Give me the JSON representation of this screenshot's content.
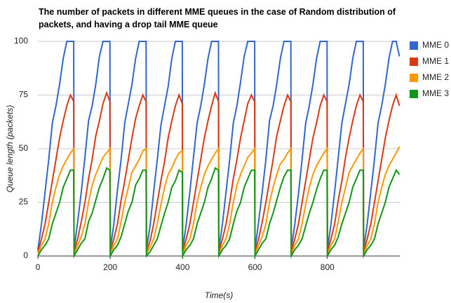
{
  "chart_data": {
    "type": "line",
    "title": "The number of packets in different MME queues in the case of Random distribution of packets, and having a drop tail MME queue",
    "x_label": "Time(s)",
    "y_label": "Queue length (packets)",
    "xlim": [
      0,
      1000
    ],
    "xticks": [
      0,
      200,
      400,
      600,
      800
    ],
    "ylim": [
      0,
      100
    ],
    "yticks": [
      0,
      25,
      50,
      75,
      100
    ],
    "grid": true,
    "legend": "right",
    "x": [
      0,
      10,
      20,
      30,
      40,
      50,
      60,
      70,
      80,
      90,
      99,
      100,
      110,
      120,
      130,
      140,
      150,
      160,
      170,
      180,
      190,
      199,
      200,
      210,
      220,
      230,
      240,
      250,
      260,
      270,
      280,
      290,
      299,
      300,
      310,
      320,
      330,
      340,
      350,
      360,
      370,
      380,
      390,
      399,
      400,
      410,
      420,
      430,
      440,
      450,
      460,
      470,
      480,
      490,
      499,
      500,
      510,
      520,
      530,
      540,
      550,
      560,
      570,
      580,
      590,
      599,
      600,
      610,
      620,
      630,
      640,
      650,
      660,
      670,
      680,
      690,
      699,
      700,
      710,
      720,
      730,
      740,
      750,
      760,
      770,
      780,
      790,
      799,
      800,
      810,
      820,
      830,
      840,
      850,
      860,
      870,
      880,
      890,
      899,
      900,
      910,
      920,
      930,
      940,
      950,
      960,
      970,
      980,
      990,
      999
    ],
    "series": [
      {
        "name": "MME 0",
        "color": "#3366cc",
        "values": [
          3,
          15,
          30,
          45,
          62,
          70,
          80,
          92,
          100,
          100,
          100,
          3,
          16,
          30,
          46,
          63,
          70,
          80,
          93,
          100,
          100,
          100,
          3,
          15,
          31,
          45,
          62,
          71,
          80,
          92,
          100,
          100,
          100,
          3,
          14,
          30,
          45,
          61,
          70,
          79,
          92,
          100,
          100,
          100,
          3,
          15,
          30,
          46,
          62,
          70,
          80,
          92,
          100,
          100,
          100,
          3,
          15,
          30,
          45,
          62,
          70,
          81,
          93,
          100,
          100,
          100,
          3,
          16,
          30,
          45,
          63,
          70,
          80,
          92,
          100,
          100,
          100,
          3,
          15,
          29,
          45,
          62,
          70,
          80,
          92,
          100,
          100,
          100,
          3,
          15,
          30,
          46,
          62,
          71,
          80,
          92,
          100,
          100,
          100,
          3,
          15,
          30,
          45,
          62,
          70,
          80,
          92,
          100,
          100,
          93
        ]
      },
      {
        "name": "MME 1",
        "color": "#dc3912",
        "values": [
          2,
          8,
          15,
          25,
          35,
          45,
          55,
          63,
          70,
          75,
          72,
          2,
          8,
          16,
          25,
          36,
          45,
          56,
          63,
          71,
          76,
          72,
          2,
          8,
          15,
          26,
          35,
          45,
          55,
          64,
          70,
          75,
          72,
          2,
          7,
          15,
          25,
          35,
          44,
          55,
          63,
          70,
          75,
          71,
          2,
          8,
          15,
          25,
          35,
          45,
          55,
          63,
          70,
          76,
          72,
          2,
          8,
          15,
          25,
          36,
          45,
          55,
          63,
          71,
          75,
          72,
          2,
          8,
          16,
          25,
          35,
          45,
          56,
          63,
          70,
          75,
          72,
          2,
          8,
          15,
          25,
          35,
          45,
          55,
          62,
          70,
          75,
          72,
          2,
          8,
          15,
          26,
          35,
          46,
          55,
          63,
          70,
          75,
          72,
          2,
          8,
          15,
          25,
          35,
          45,
          55,
          63,
          70,
          75,
          70
        ]
      },
      {
        "name": "MME 2",
        "color": "#ff9900",
        "values": [
          1,
          5,
          8,
          15,
          25,
          32,
          38,
          42,
          45,
          48,
          50,
          1,
          5,
          9,
          15,
          25,
          33,
          38,
          42,
          46,
          48,
          50,
          1,
          5,
          8,
          16,
          25,
          32,
          39,
          42,
          45,
          49,
          50,
          1,
          4,
          8,
          15,
          24,
          32,
          38,
          41,
          45,
          48,
          49,
          1,
          5,
          8,
          15,
          25,
          32,
          38,
          42,
          45,
          48,
          50,
          1,
          5,
          8,
          15,
          25,
          33,
          38,
          42,
          46,
          48,
          50,
          1,
          5,
          9,
          15,
          25,
          32,
          38,
          43,
          45,
          48,
          50,
          1,
          5,
          8,
          15,
          24,
          32,
          38,
          42,
          45,
          48,
          50,
          1,
          5,
          8,
          16,
          25,
          32,
          39,
          42,
          45,
          48,
          50,
          1,
          5,
          8,
          15,
          25,
          32,
          38,
          42,
          45,
          48,
          51
        ]
      },
      {
        "name": "MME 3",
        "color": "#109618",
        "values": [
          0,
          3,
          5,
          8,
          15,
          20,
          25,
          32,
          36,
          40,
          40,
          0,
          3,
          6,
          8,
          16,
          20,
          26,
          32,
          36,
          41,
          40,
          0,
          3,
          5,
          9,
          15,
          21,
          25,
          33,
          36,
          40,
          40,
          0,
          2,
          5,
          8,
          14,
          20,
          25,
          32,
          35,
          40,
          39,
          0,
          3,
          5,
          8,
          15,
          20,
          25,
          32,
          36,
          41,
          40,
          0,
          3,
          5,
          8,
          15,
          21,
          25,
          32,
          36,
          40,
          40,
          0,
          3,
          6,
          8,
          15,
          20,
          26,
          32,
          37,
          40,
          40,
          0,
          3,
          5,
          8,
          14,
          20,
          25,
          31,
          36,
          40,
          40,
          0,
          3,
          5,
          9,
          15,
          20,
          25,
          32,
          36,
          40,
          40,
          0,
          3,
          5,
          8,
          15,
          20,
          25,
          32,
          36,
          40,
          38
        ]
      }
    ]
  }
}
